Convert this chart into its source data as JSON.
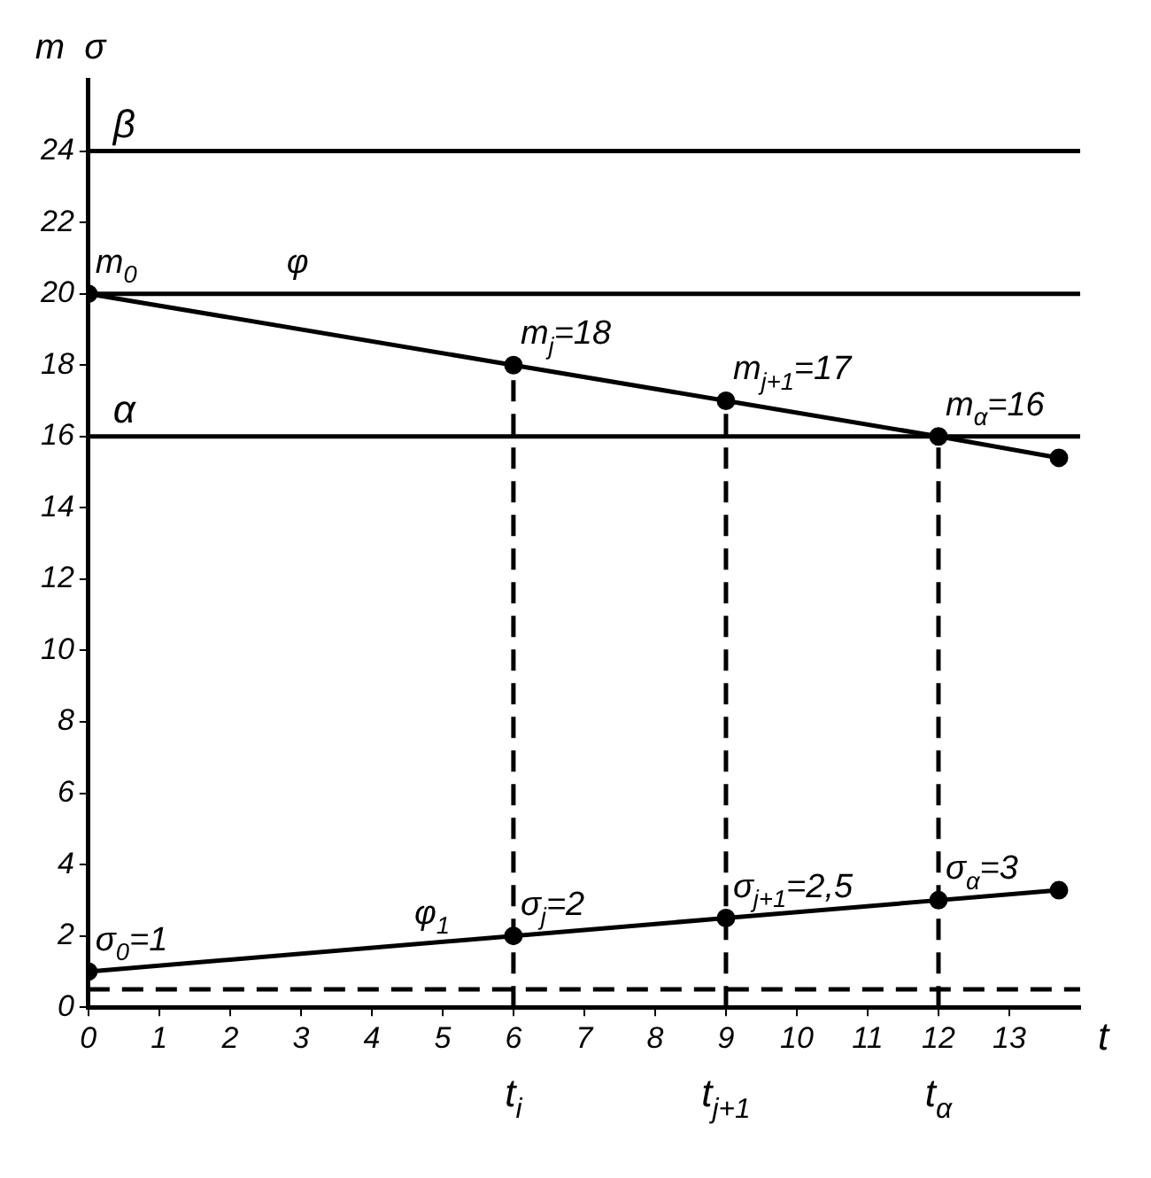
{
  "chart_data": {
    "type": "line",
    "xlabel": "t",
    "ylabel": "m  σ",
    "series": [
      {
        "color": "#000000",
        "x": [
          0,
          6,
          9,
          12,
          13.7
        ],
        "values": [
          20,
          18,
          17,
          16,
          15.4
        ]
      },
      {
        "color": "#000000",
        "x": [
          0,
          6,
          9,
          12,
          13.7
        ],
        "values": [
          1,
          2,
          2.5,
          3,
          3.28
        ]
      }
    ],
    "xlim": [
      0,
      14
    ],
    "xticks": [
      0,
      1,
      2,
      3,
      4,
      5,
      6,
      7,
      8,
      9,
      10,
      11,
      12,
      13
    ],
    "ylim": [
      0,
      26
    ],
    "yticks": [
      0,
      2,
      4,
      6,
      8,
      10,
      12,
      14,
      16,
      18,
      20,
      22,
      24
    ],
    "grid": false,
    "legend": false,
    "marker": "circle",
    "line_style": "solid",
    "ref_lines": [
      {
        "axis": "y",
        "value": 24,
        "label": "β",
        "line_style": "solid"
      },
      {
        "axis": "y",
        "value": 20,
        "line_style": "solid"
      },
      {
        "axis": "y",
        "value": 16,
        "label": "α",
        "line_style": "solid"
      },
      {
        "axis": "y",
        "value": 0.5,
        "line_style": "dashed"
      },
      {
        "axis": "x",
        "value": 6,
        "label": "t$_{i}$",
        "line_style": "dashed"
      },
      {
        "axis": "x",
        "value": 9,
        "label": "t$_{j+1}$",
        "line_style": "dashed"
      },
      {
        "axis": "x",
        "value": 12,
        "label": "t$_{α}$",
        "line_style": "dashed"
      }
    ],
    "annotations": [
      {
        "text": "m$_{0}$",
        "x": 0,
        "y": 20
      },
      {
        "text": "φ",
        "x": 2.7,
        "y": 20
      },
      {
        "text": "m$_{j}$=18",
        "x": 6,
        "y": 18
      },
      {
        "text": "m$_{j+1}$=17",
        "x": 9,
        "y": 17
      },
      {
        "text": "m$_{α}$=16",
        "x": 12,
        "y": 16
      },
      {
        "text": "σ$_{0}$=1",
        "x": 0,
        "y": 1
      },
      {
        "text": "φ$_{1}$",
        "x": 4.5,
        "y": 1.75
      },
      {
        "text": "σ$_{j}$=2",
        "x": 6,
        "y": 2
      },
      {
        "text": "σ$_{j+1}$=2,5",
        "x": 9,
        "y": 2.5
      },
      {
        "text": "σ$_{α}$=3",
        "x": 12,
        "y": 3
      }
    ]
  }
}
